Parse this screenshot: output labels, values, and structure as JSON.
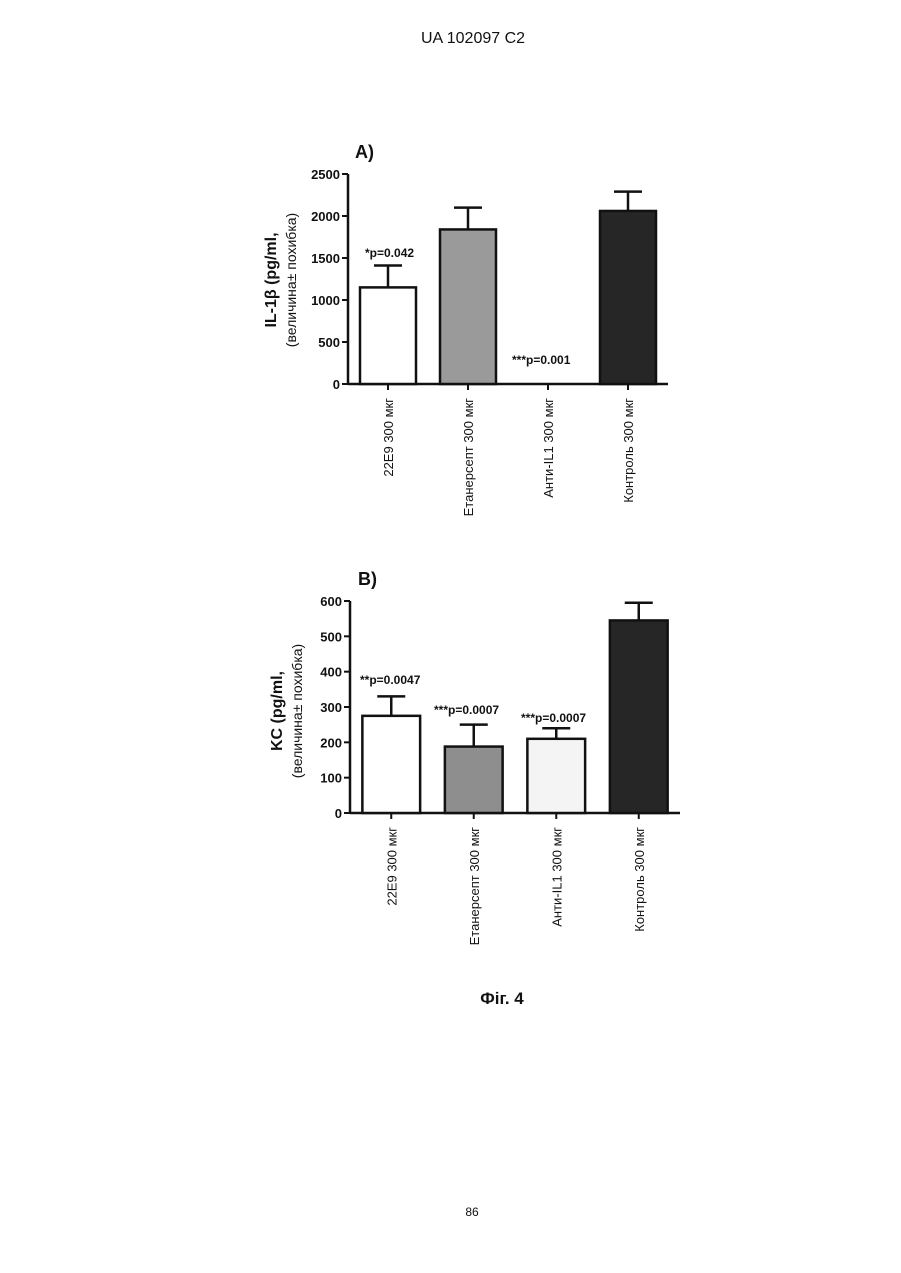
{
  "header": "UA   102097   C2",
  "caption": "Фіг. 4",
  "page_number": "86",
  "chart_data": [
    {
      "type": "bar",
      "title": "A)",
      "ylabel": [
        "IL-1β (pg/ml,",
        "(величина± похибка)"
      ],
      "categories": [
        "22E9 300 мкг",
        "Етанерсепт 300 мкг",
        "Анти-IL1 300 мкг",
        "Контроль 300 мкг"
      ],
      "values": [
        1150,
        1840,
        0,
        2060
      ],
      "errors": [
        260,
        260,
        null,
        230
      ],
      "colors": [
        "#ffffff",
        "#9a9a9a",
        "#ffffff",
        "#262626"
      ],
      "ylim": [
        0,
        2500
      ],
      "yticks": [
        0,
        500,
        1000,
        1500,
        2000,
        2500
      ],
      "annotations": [
        "*p=0.042",
        "***p=0.001"
      ]
    },
    {
      "type": "bar",
      "title": "B)",
      "ylabel": [
        "KC (pg/ml,",
        "(величина± похибка)"
      ],
      "categories": [
        "22E9 300 мкг",
        "Етанерсепт 300 мкг",
        "Анти-IL1 300 мкг",
        "Контроль 300 мкг"
      ],
      "values": [
        275,
        188,
        210,
        545
      ],
      "errors": [
        55,
        62,
        30,
        50
      ],
      "colors": [
        "#ffffff",
        "#8e8e8e",
        "#f4f4f4",
        "#262626"
      ],
      "ylim": [
        0,
        600
      ],
      "yticks": [
        0,
        100,
        200,
        300,
        400,
        500,
        600
      ],
      "annotations": [
        "**p=0.0047",
        "***p=0.0007",
        "***p=0.0007"
      ]
    }
  ]
}
